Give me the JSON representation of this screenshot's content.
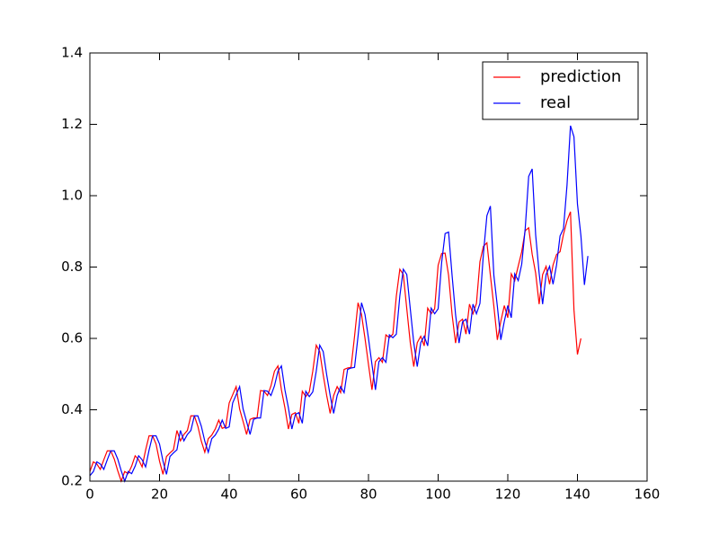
{
  "chart_data": {
    "type": "line",
    "xlim": [
      0,
      160
    ],
    "xticks": [
      0,
      20,
      40,
      60,
      80,
      100,
      120,
      140,
      160
    ],
    "ylim": [
      0.2,
      1.4
    ],
    "yticks": [
      0.2,
      0.4,
      0.6,
      0.8,
      1.0,
      1.2,
      1.4
    ],
    "legend": "upper right",
    "series": [
      {
        "name": "prediction",
        "color": "#ff0000",
        "x": [
          0,
          1,
          2,
          3,
          4,
          5,
          6,
          7,
          8,
          9,
          10,
          11,
          12,
          13,
          14,
          15,
          16,
          17,
          18,
          19,
          20,
          21,
          22,
          23,
          24,
          25,
          26,
          27,
          28,
          29,
          30,
          31,
          32,
          33,
          34,
          35,
          36,
          37,
          38,
          39,
          40,
          41,
          42,
          43,
          44,
          45,
          46,
          47,
          48,
          49,
          50,
          51,
          52,
          53,
          54,
          55,
          56,
          57,
          58,
          59,
          60,
          61,
          62,
          63,
          64,
          65,
          66,
          67,
          68,
          69,
          70,
          71,
          72,
          73,
          74,
          75,
          76,
          77,
          78,
          79,
          80,
          81,
          82,
          83,
          84,
          85,
          86,
          87,
          88,
          89,
          90,
          91,
          92,
          93,
          94,
          95,
          96,
          97,
          98,
          99,
          100,
          101,
          102,
          103,
          104,
          105,
          106,
          107,
          108,
          109,
          110,
          111,
          112,
          113,
          114,
          115,
          116,
          117,
          118,
          119,
          120,
          121,
          122,
          123,
          124,
          125,
          126,
          127,
          128,
          129,
          130,
          131,
          132,
          133,
          134,
          135,
          136,
          137,
          138,
          139,
          140,
          141
        ],
        "values": [
          0.227,
          0.254,
          0.248,
          0.233,
          0.26,
          0.285,
          0.285,
          0.262,
          0.229,
          0.2,
          0.227,
          0.221,
          0.242,
          0.271,
          0.26,
          0.24,
          0.287,
          0.327,
          0.327,
          0.304,
          0.256,
          0.219,
          0.269,
          0.279,
          0.288,
          0.342,
          0.313,
          0.331,
          0.342,
          0.383,
          0.383,
          0.354,
          0.312,
          0.281,
          0.319,
          0.329,
          0.346,
          0.371,
          0.348,
          0.352,
          0.419,
          0.442,
          0.465,
          0.402,
          0.367,
          0.331,
          0.373,
          0.377,
          0.377,
          0.454,
          0.452,
          0.44,
          0.467,
          0.508,
          0.523,
          0.456,
          0.406,
          0.346,
          0.387,
          0.392,
          0.362,
          0.452,
          0.437,
          0.45,
          0.508,
          0.581,
          0.563,
          0.498,
          0.44,
          0.39,
          0.44,
          0.465,
          0.448,
          0.513,
          0.517,
          0.519,
          0.606,
          0.7,
          0.667,
          0.6,
          0.527,
          0.456,
          0.535,
          0.546,
          0.533,
          0.61,
          0.602,
          0.612,
          0.719,
          0.794,
          0.779,
          0.683,
          0.588,
          0.521,
          0.588,
          0.606,
          0.579,
          0.685,
          0.669,
          0.683,
          0.805,
          0.838,
          0.839,
          0.777,
          0.667,
          0.587,
          0.646,
          0.654,
          0.612,
          0.696,
          0.669,
          0.698,
          0.815,
          0.858,
          0.868,
          0.777,
          0.69,
          0.596,
          0.648,
          0.692,
          0.658,
          0.781,
          0.762,
          0.803,
          0.843,
          0.902,
          0.91,
          0.836,
          0.783,
          0.696,
          0.779,
          0.802,
          0.752,
          0.806,
          0.835,
          0.843,
          0.892,
          0.93,
          0.955,
          0.68,
          0.555,
          0.6
        ]
      },
      {
        "name": "real",
        "color": "#0000ff",
        "x": [
          0,
          1,
          2,
          3,
          4,
          5,
          6,
          7,
          8,
          9,
          10,
          11,
          12,
          13,
          14,
          15,
          16,
          17,
          18,
          19,
          20,
          21,
          22,
          23,
          24,
          25,
          26,
          27,
          28,
          29,
          30,
          31,
          32,
          33,
          34,
          35,
          36,
          37,
          38,
          39,
          40,
          41,
          42,
          43,
          44,
          45,
          46,
          47,
          48,
          49,
          50,
          51,
          52,
          53,
          54,
          55,
          56,
          57,
          58,
          59,
          60,
          61,
          62,
          63,
          64,
          65,
          66,
          67,
          68,
          69,
          70,
          71,
          72,
          73,
          74,
          75,
          76,
          77,
          78,
          79,
          80,
          81,
          82,
          83,
          84,
          85,
          86,
          87,
          88,
          89,
          90,
          91,
          92,
          93,
          94,
          95,
          96,
          97,
          98,
          99,
          100,
          101,
          102,
          103,
          104,
          105,
          106,
          107,
          108,
          109,
          110,
          111,
          112,
          113,
          114,
          115,
          116,
          117,
          118,
          119,
          120,
          121,
          122,
          123,
          124,
          125,
          126,
          127,
          128,
          129,
          130,
          131,
          132,
          133,
          134,
          135,
          136,
          137,
          138,
          139,
          140,
          141,
          142,
          143
        ],
        "values": [
          0.215,
          0.227,
          0.254,
          0.248,
          0.233,
          0.26,
          0.285,
          0.285,
          0.262,
          0.229,
          0.2,
          0.227,
          0.221,
          0.242,
          0.271,
          0.26,
          0.24,
          0.287,
          0.327,
          0.327,
          0.304,
          0.256,
          0.219,
          0.269,
          0.279,
          0.288,
          0.342,
          0.313,
          0.331,
          0.342,
          0.383,
          0.383,
          0.354,
          0.312,
          0.281,
          0.319,
          0.329,
          0.346,
          0.371,
          0.348,
          0.352,
          0.419,
          0.442,
          0.465,
          0.402,
          0.367,
          0.331,
          0.373,
          0.377,
          0.377,
          0.454,
          0.452,
          0.44,
          0.467,
          0.508,
          0.523,
          0.456,
          0.406,
          0.346,
          0.387,
          0.392,
          0.362,
          0.452,
          0.437,
          0.45,
          0.508,
          0.581,
          0.563,
          0.498,
          0.44,
          0.39,
          0.44,
          0.465,
          0.448,
          0.513,
          0.517,
          0.519,
          0.606,
          0.7,
          0.667,
          0.6,
          0.527,
          0.456,
          0.535,
          0.546,
          0.533,
          0.61,
          0.602,
          0.612,
          0.719,
          0.794,
          0.779,
          0.683,
          0.588,
          0.521,
          0.588,
          0.606,
          0.579,
          0.685,
          0.669,
          0.683,
          0.812,
          0.894,
          0.898,
          0.777,
          0.667,
          0.587,
          0.646,
          0.654,
          0.612,
          0.696,
          0.669,
          0.698,
          0.837,
          0.944,
          0.971,
          0.777,
          0.69,
          0.596,
          0.648,
          0.692,
          0.658,
          0.781,
          0.762,
          0.808,
          0.908,
          1.054,
          1.075,
          0.89,
          0.783,
          0.696,
          0.779,
          0.802,
          0.752,
          0.806,
          0.887,
          0.908,
          1.029,
          1.196,
          1.165,
          0.977,
          0.887,
          0.75,
          0.831
        ]
      }
    ]
  }
}
